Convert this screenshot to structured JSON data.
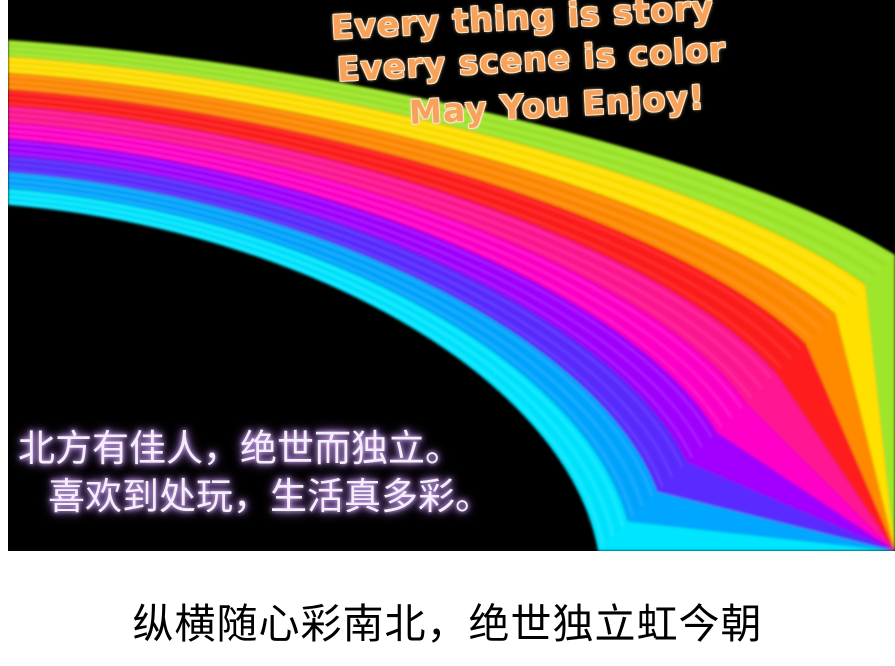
{
  "poster": {
    "english_lines": [
      "Every thing is story",
      "Every scene is color",
      "May You Enjoy!"
    ],
    "chinese_lines": [
      "北方有佳人，绝世而独立。",
      "喜欢到处玩，生活真多彩。"
    ]
  },
  "caption": "纵横随心彩南北，绝世独立虹今朝",
  "rainbow_colors": [
    "#9ee62a",
    "#ffe000",
    "#ff8a00",
    "#ff1a1a",
    "#ff1493",
    "#ff00c8",
    "#a100ff",
    "#5a2cff",
    "#00a6ff",
    "#00e5ff"
  ]
}
